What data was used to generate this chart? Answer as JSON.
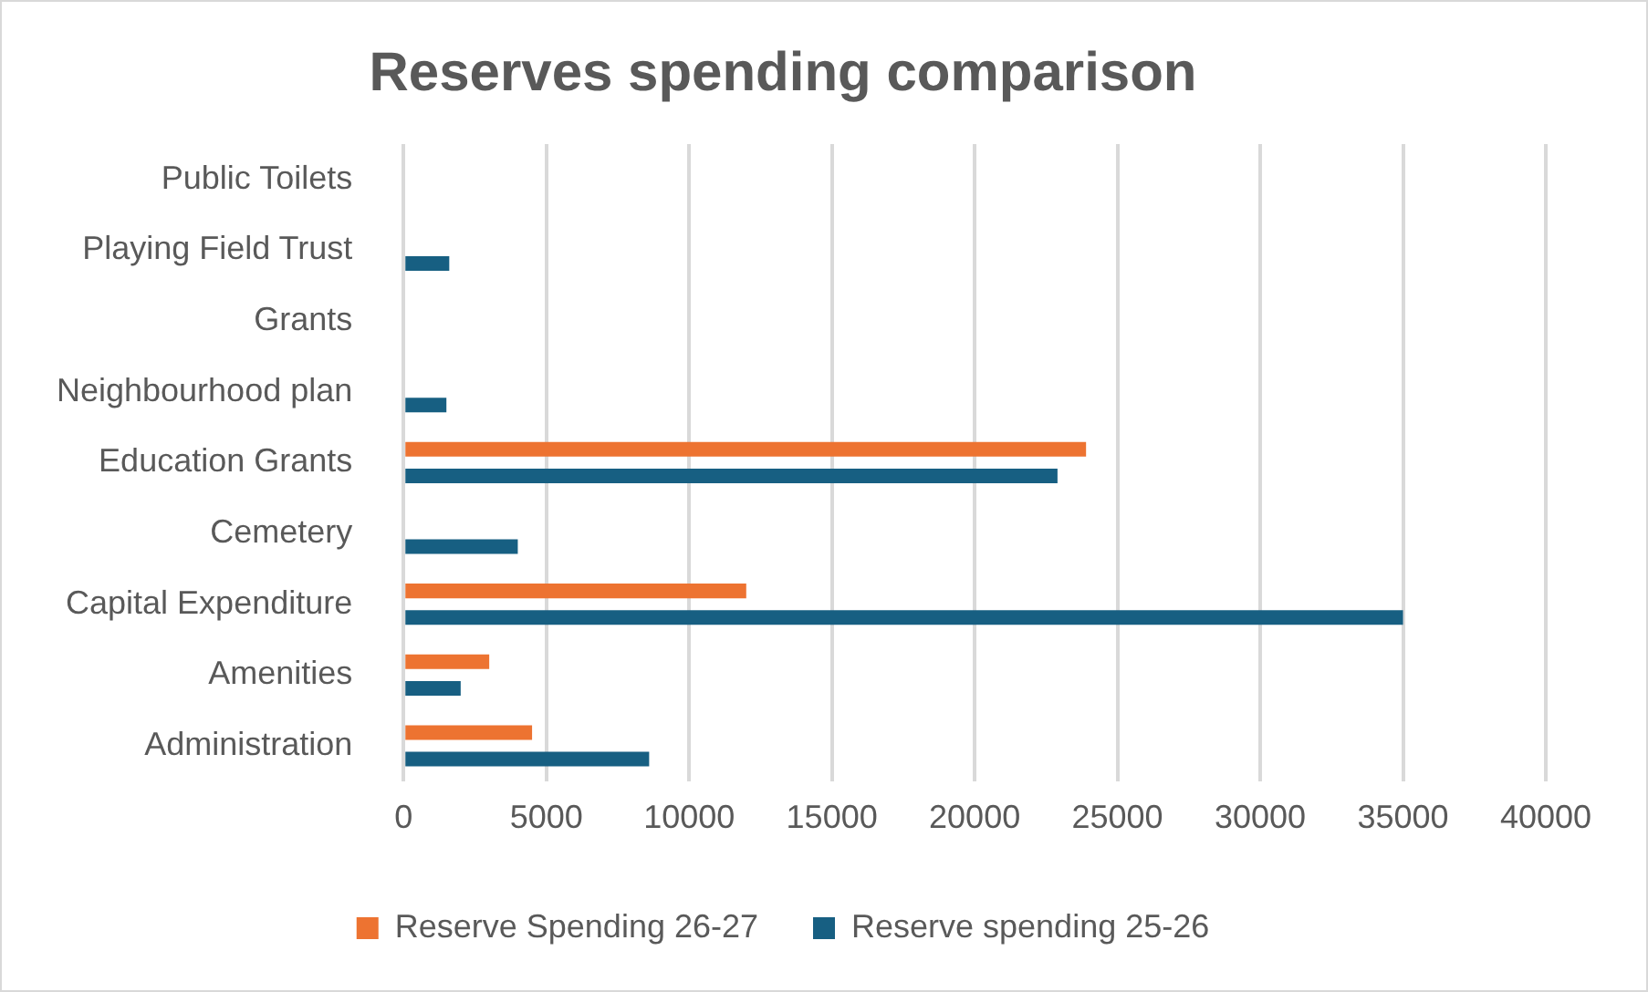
{
  "chart_data": {
    "type": "bar",
    "orientation": "horizontal",
    "title": "Reserves spending comparison",
    "categories": [
      "Public Toilets",
      "Playing Field Trust",
      "Grants",
      "Neighbourhood plan",
      "Education Grants",
      "Cemetery",
      "Capital Expenditure",
      "Amenities",
      "Administration"
    ],
    "series": [
      {
        "name": "Reserve Spending 26-27",
        "color": "#ed7331",
        "values": [
          null,
          null,
          null,
          null,
          23900,
          null,
          12000,
          3000,
          4500
        ]
      },
      {
        "name": "Reserve spending 25-26",
        "color": "#175f82",
        "values": [
          null,
          1600,
          null,
          1500,
          22900,
          4000,
          35000,
          2000,
          8600
        ]
      }
    ],
    "xlim": [
      0,
      40000
    ],
    "xticks": [
      0,
      5000,
      10000,
      15000,
      20000,
      25000,
      30000,
      35000,
      40000
    ],
    "grid": "x",
    "legend": "bottom"
  }
}
